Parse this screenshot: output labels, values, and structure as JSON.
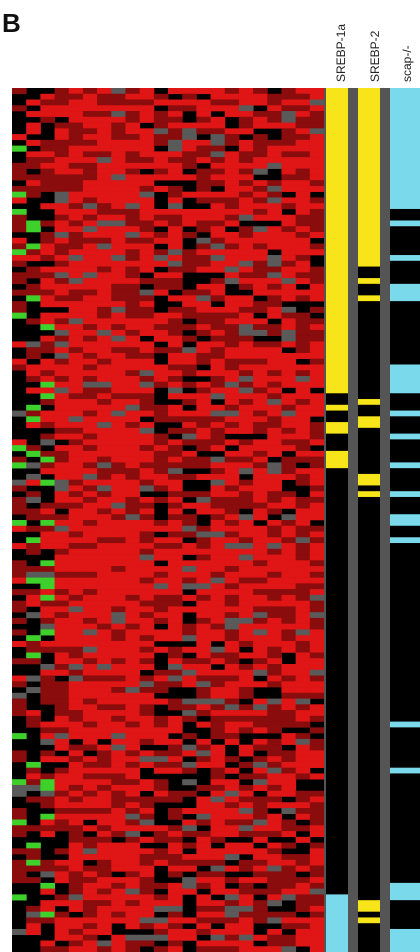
{
  "panel_label": "B",
  "colors": {
    "heat_high": "#e01515",
    "heat_mid": "#8a0c0c",
    "heat_low": "#000000",
    "heat_missing": "#5a5a5a",
    "heat_down": "#3fd12b",
    "track_srebp": "#f7e51a",
    "track_scap": "#7ad9ea",
    "track_off": "#000000",
    "track_sep": "#555555"
  },
  "chart_data": {
    "type": "heatmap",
    "title": "",
    "xlabel": "",
    "ylabel": "",
    "rows": 150,
    "columns": 22,
    "annotation_tracks": [
      {
        "name": "SREBP-1a",
        "color": "#f7e51a",
        "on_row_ranges": [
          [
            0,
            53
          ],
          [
            55,
            56
          ],
          [
            58,
            60
          ],
          [
            63,
            66
          ]
        ]
      },
      {
        "name": "SREBP-2",
        "color": "#f7e51a",
        "on_row_ranges": [
          [
            0,
            31
          ],
          [
            33,
            34
          ],
          [
            36,
            37
          ],
          [
            54,
            55
          ],
          [
            57,
            59
          ],
          [
            67,
            69
          ],
          [
            70,
            71
          ],
          [
            141,
            143
          ],
          [
            144,
            145
          ]
        ]
      },
      {
        "name": "scap-/-",
        "color": "#7ad9ea",
        "on_row_ranges": [
          [
            0,
            21
          ],
          [
            23,
            24
          ],
          [
            29,
            30
          ],
          [
            34,
            37
          ],
          [
            48,
            53
          ],
          [
            56,
            57
          ],
          [
            60,
            61
          ],
          [
            65,
            66
          ],
          [
            70,
            71
          ],
          [
            74,
            76
          ],
          [
            78,
            79
          ],
          [
            110,
            111
          ],
          [
            118,
            119
          ],
          [
            138,
            141
          ],
          [
            146,
            150
          ]
        ]
      }
    ],
    "left_track_scap_bottom": [
      [
        140,
        150
      ]
    ]
  }
}
